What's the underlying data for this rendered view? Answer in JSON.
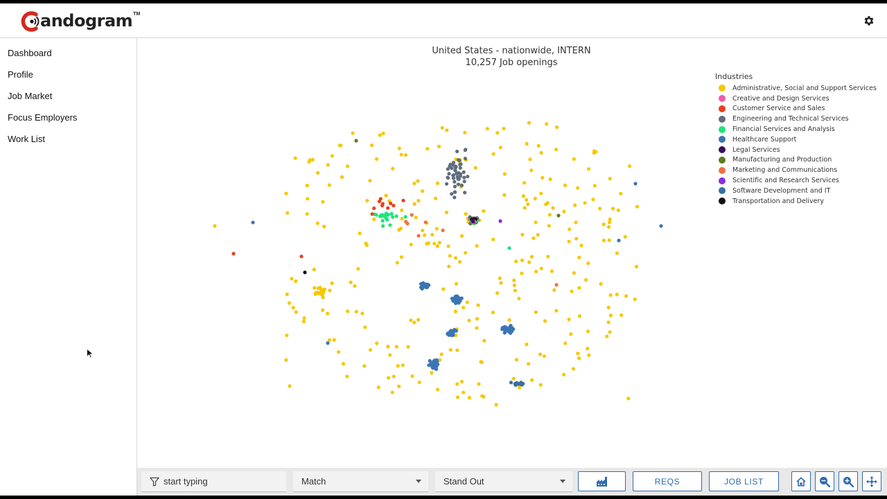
{
  "app": {
    "name": "andogram",
    "trademark": "TM"
  },
  "header": {
    "settings_icon": "gear-icon"
  },
  "sidebar": {
    "items": [
      {
        "label": "Dashboard"
      },
      {
        "label": "Profile"
      },
      {
        "label": "Job Market"
      },
      {
        "label": "Focus Employers"
      },
      {
        "label": "Work List"
      }
    ]
  },
  "chart": {
    "title_line1": "United States - nationwide, INTERN",
    "title_line2": "10,257 Job openings",
    "legend_title": "Industries"
  },
  "chart_data": {
    "type": "scatter",
    "title": "United States - nationwide, INTERN",
    "subtitle": "10,257 Job openings",
    "legend_title": "Industries",
    "legend_position": "top-right",
    "axes_visible": false,
    "grid": false,
    "series": [
      {
        "name": "Administrative, Social and Support Services",
        "color": "#f5c800"
      },
      {
        "name": "Creative and Design Services",
        "color": "#ee5da8"
      },
      {
        "name": "Customer Service and Sales",
        "color": "#e8401c"
      },
      {
        "name": "Engineering and Technical Services",
        "color": "#5f6d7d"
      },
      {
        "name": "Financial Services and Analysis",
        "color": "#1de47a"
      },
      {
        "name": "Healthcare Support",
        "color": "#3b75b3"
      },
      {
        "name": "Legal Services",
        "color": "#3a0b5c"
      },
      {
        "name": "Manufacturing and Production",
        "color": "#5f7a22"
      },
      {
        "name": "Marketing and Communications",
        "color": "#f07040"
      },
      {
        "name": "Scientific and Research Services",
        "color": "#8a2be2"
      },
      {
        "name": "Software Development and IT",
        "color": "#3a6ea3"
      },
      {
        "name": "Transportation and Delivery",
        "color": "#111111"
      }
    ]
  },
  "toolbar": {
    "filter_placeholder": "start typing",
    "filter_icon": "filter-icon",
    "match_value": "Match",
    "standout_value": "Stand Out",
    "factory_icon": "factory-icon",
    "reqs_label": "REQS",
    "joblist_label": "JOB LIST",
    "home_icon": "home-icon",
    "zoom_out_icon": "zoom-out-icon",
    "zoom_in_icon": "zoom-in-icon",
    "pan_icon": "pan-icon"
  },
  "colors": {
    "accent": "#2f6bb0",
    "logo_red": "#d42a20"
  }
}
